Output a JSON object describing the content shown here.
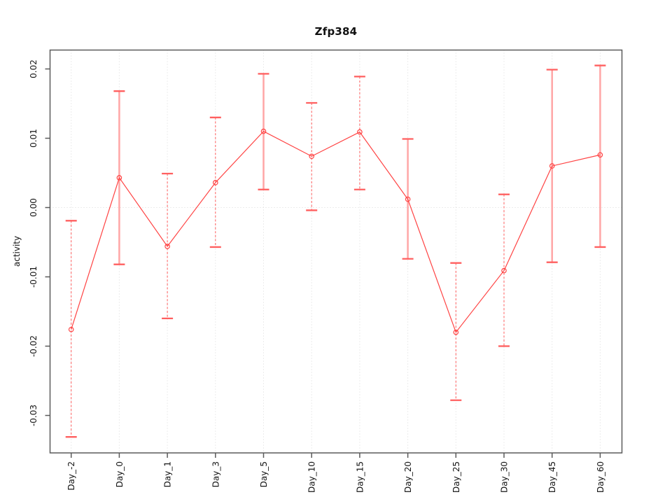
{
  "title": "Zfp384",
  "chart_data": {
    "type": "line",
    "title": "Zfp384",
    "xlabel": "",
    "ylabel": "activity",
    "categories": [
      "Day_-2",
      "Day_0",
      "Day_1",
      "Day_3",
      "Day_5",
      "Day_10",
      "Day_15",
      "Day_20",
      "Day_25",
      "Day_30",
      "Day_45",
      "Day_60"
    ],
    "series": [
      {
        "name": "activity",
        "values": [
          -0.0176,
          0.0043,
          -0.0056,
          0.0036,
          0.011,
          0.0074,
          0.0109,
          0.0012,
          -0.018,
          -0.0091,
          0.006,
          0.0076
        ],
        "upper": [
          -0.0019,
          0.0168,
          0.0049,
          0.013,
          0.0193,
          0.0151,
          0.0189,
          0.0099,
          -0.008,
          0.0019,
          0.0199,
          0.0205
        ],
        "lower": [
          -0.0331,
          -0.0082,
          -0.016,
          -0.0057,
          0.0026,
          -0.0004,
          0.0026,
          -0.0074,
          -0.0278,
          -0.02,
          -0.0079,
          -0.0057
        ],
        "bar_style": [
          "dashed",
          "solid",
          "dashed",
          "dashed",
          "solid",
          "dashed",
          "dashed",
          "solid",
          "dashed",
          "dashed",
          "solid",
          "solid"
        ]
      }
    ],
    "yticks": [
      0.02,
      0.01,
      0,
      -0.01,
      -0.02,
      -0.03
    ],
    "ytick_labels": [
      "0.02",
      "0.01",
      "0.00",
      "-0.01",
      "-0.02",
      "-0.03"
    ],
    "ylim": [
      -0.035,
      0.023
    ],
    "grid": "dotted vertical line at each category; dotted horizontal line at y=0",
    "legend": "none",
    "marker": "open-circle",
    "colors": {
      "series_line": "#ff4343",
      "marker": "#ff4343",
      "cap": "#ff5f5f",
      "bar_solid": "#ffa6a6",
      "bar_dashed": "#ff5c5c",
      "grid": "#dadada",
      "axis": "#5a5a5a",
      "text": "#141414"
    }
  }
}
